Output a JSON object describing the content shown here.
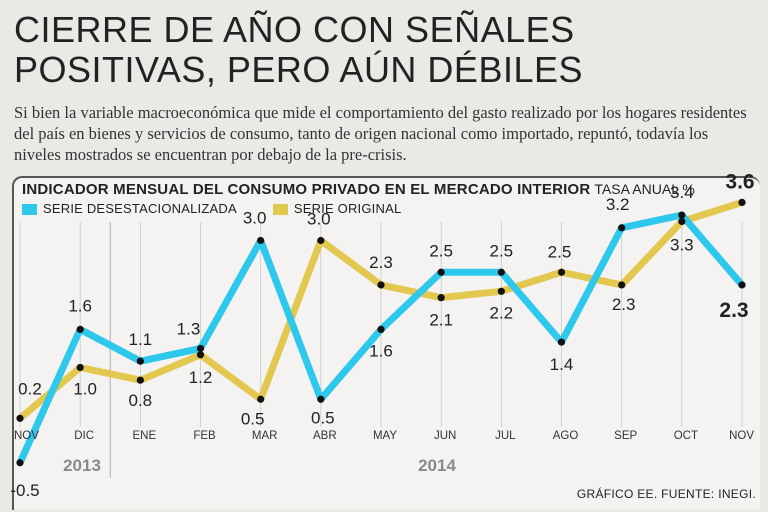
{
  "headline": {
    "title_line1": "CIERRE DE AÑO CON SEÑALES",
    "title_line2": "POSITIVAS, PERO AÚN DÉBILES",
    "subtitle": "Si bien la variable macroeconómica que mide el comportamiento del gasto realizado por los hogares residentes del país en bienes y servicios de consumo, tanto de origen nacional como importado, repuntó, todavía los niveles mostrados se encuentran por debajo de la pre-crisis."
  },
  "chart_header": {
    "title": "INDICADOR MENSUAL DEL CONSUMO PRIVADO EN EL MERCADO INTERIOR",
    "unit": "TASA ANUAL %"
  },
  "legend": {
    "series_1": "SERIE DESESTACIONALIZADA",
    "series_2": "SERIE ORIGINAL"
  },
  "colors": {
    "series_1": "#2ec8ec",
    "series_2": "#e3c84f",
    "marker": "#111111",
    "grid": "#c8c8c8"
  },
  "chart_data": {
    "type": "line",
    "title": "INDICADOR MENSUAL DEL CONSUMO PRIVADO EN EL MERCADO INTERIOR",
    "ylabel": "TASA ANUAL %",
    "categories": [
      "NOV",
      "DIC",
      "ENE",
      "FEB",
      "MAR",
      "ABR",
      "MAY",
      "JUN",
      "JUL",
      "AGO",
      "SEP",
      "OCT",
      "NOV"
    ],
    "year_labels": [
      "2013",
      "2014"
    ],
    "ylim": [
      -0.8,
      3.8
    ],
    "series": [
      {
        "name": "SERIE DESESTACIONALIZADA",
        "values": [
          -0.5,
          1.6,
          1.1,
          1.3,
          3.0,
          0.5,
          1.6,
          2.5,
          2.5,
          1.4,
          3.2,
          3.4,
          2.3
        ],
        "labels": [
          "-0.5",
          "1.6",
          "1.1",
          "1.3",
          "3.0",
          "0.5",
          "1.6",
          "2.5",
          "2.5",
          "1.4",
          "3.2",
          "3.4",
          "2.3"
        ]
      },
      {
        "name": "SERIE ORIGINAL",
        "values": [
          0.2,
          1.0,
          0.8,
          1.2,
          0.5,
          3.0,
          2.3,
          2.1,
          2.2,
          2.5,
          2.3,
          3.3,
          3.6
        ],
        "labels": [
          "0.2",
          "1.0",
          "0.8",
          "1.2",
          "0.5",
          "3.0",
          "2.3",
          "2.1",
          "2.2",
          "2.5",
          "2.3",
          "3.3",
          "3.6"
        ]
      }
    ]
  },
  "footer": {
    "source": "GRÁFICO EE. FUENTE: INEGI."
  }
}
